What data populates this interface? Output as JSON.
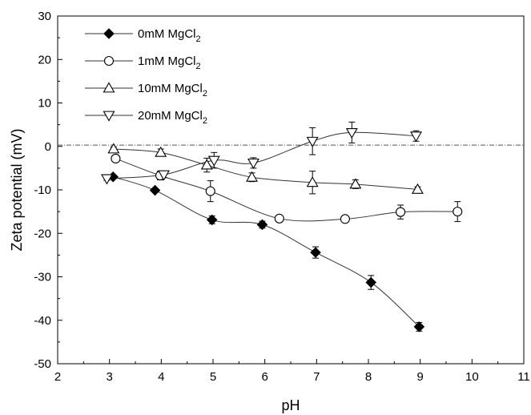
{
  "chart_data": {
    "type": "scatter",
    "title": "",
    "xlabel": "pH",
    "ylabel": "Zeta potential (mV)",
    "xlim": [
      2,
      11
    ],
    "ylim": [
      -50,
      30
    ],
    "x_ticks": [
      "2",
      "3",
      "4",
      "5",
      "6",
      "7",
      "8",
      "9",
      "10",
      "11"
    ],
    "y_ticks": [
      "-50",
      "-40",
      "-30",
      "-20",
      "-10",
      "0",
      "10",
      "20",
      "30"
    ],
    "reference_line_y": 0.3,
    "legend_position": "top-left",
    "grid": false,
    "series": [
      {
        "name": "0mM MgCl",
        "name_sub": "2",
        "marker": "diamond-filled",
        "x": [
          3.07,
          3.88,
          4.98,
          5.95,
          6.98,
          8.05,
          8.98
        ],
        "y": [
          -7.0,
          -10.1,
          -16.9,
          -18.0,
          -24.4,
          -31.3,
          -41.5
        ],
        "err": [
          0.4,
          0.4,
          0.9,
          0.8,
          1.3,
          1.6,
          1.0
        ]
      },
      {
        "name": "1mM MgCl",
        "name_sub": "2",
        "marker": "circle-open",
        "x": [
          3.12,
          3.98,
          4.95,
          6.28,
          7.55,
          8.62,
          9.72
        ],
        "y": [
          -2.8,
          -6.7,
          -10.3,
          -16.6,
          -16.7,
          -15.1,
          -15.0
        ],
        "err": [
          0.5,
          1.0,
          2.4,
          0.5,
          0.5,
          1.6,
          2.3
        ]
      },
      {
        "name": "10mM MgCl",
        "name_sub": "2",
        "marker": "triangle-up-open",
        "x": [
          3.08,
          3.99,
          4.88,
          5.75,
          6.92,
          7.75,
          8.95
        ],
        "y": [
          -0.6,
          -1.4,
          -4.3,
          -7.1,
          -8.3,
          -8.7,
          -9.9
        ],
        "err": [
          0.5,
          0.8,
          1.6,
          1.0,
          2.6,
          1.0,
          0.6
        ]
      },
      {
        "name": "20mM MgCl",
        "name_sub": "2",
        "marker": "triangle-down-open",
        "x": [
          2.95,
          4.05,
          5.02,
          5.78,
          6.92,
          7.68,
          8.92
        ],
        "y": [
          -7.4,
          -6.5,
          -3.2,
          -3.8,
          1.2,
          3.2,
          2.4
        ],
        "err": [
          0.4,
          0.7,
          1.8,
          1.2,
          3.1,
          2.4,
          1.2
        ]
      }
    ]
  }
}
